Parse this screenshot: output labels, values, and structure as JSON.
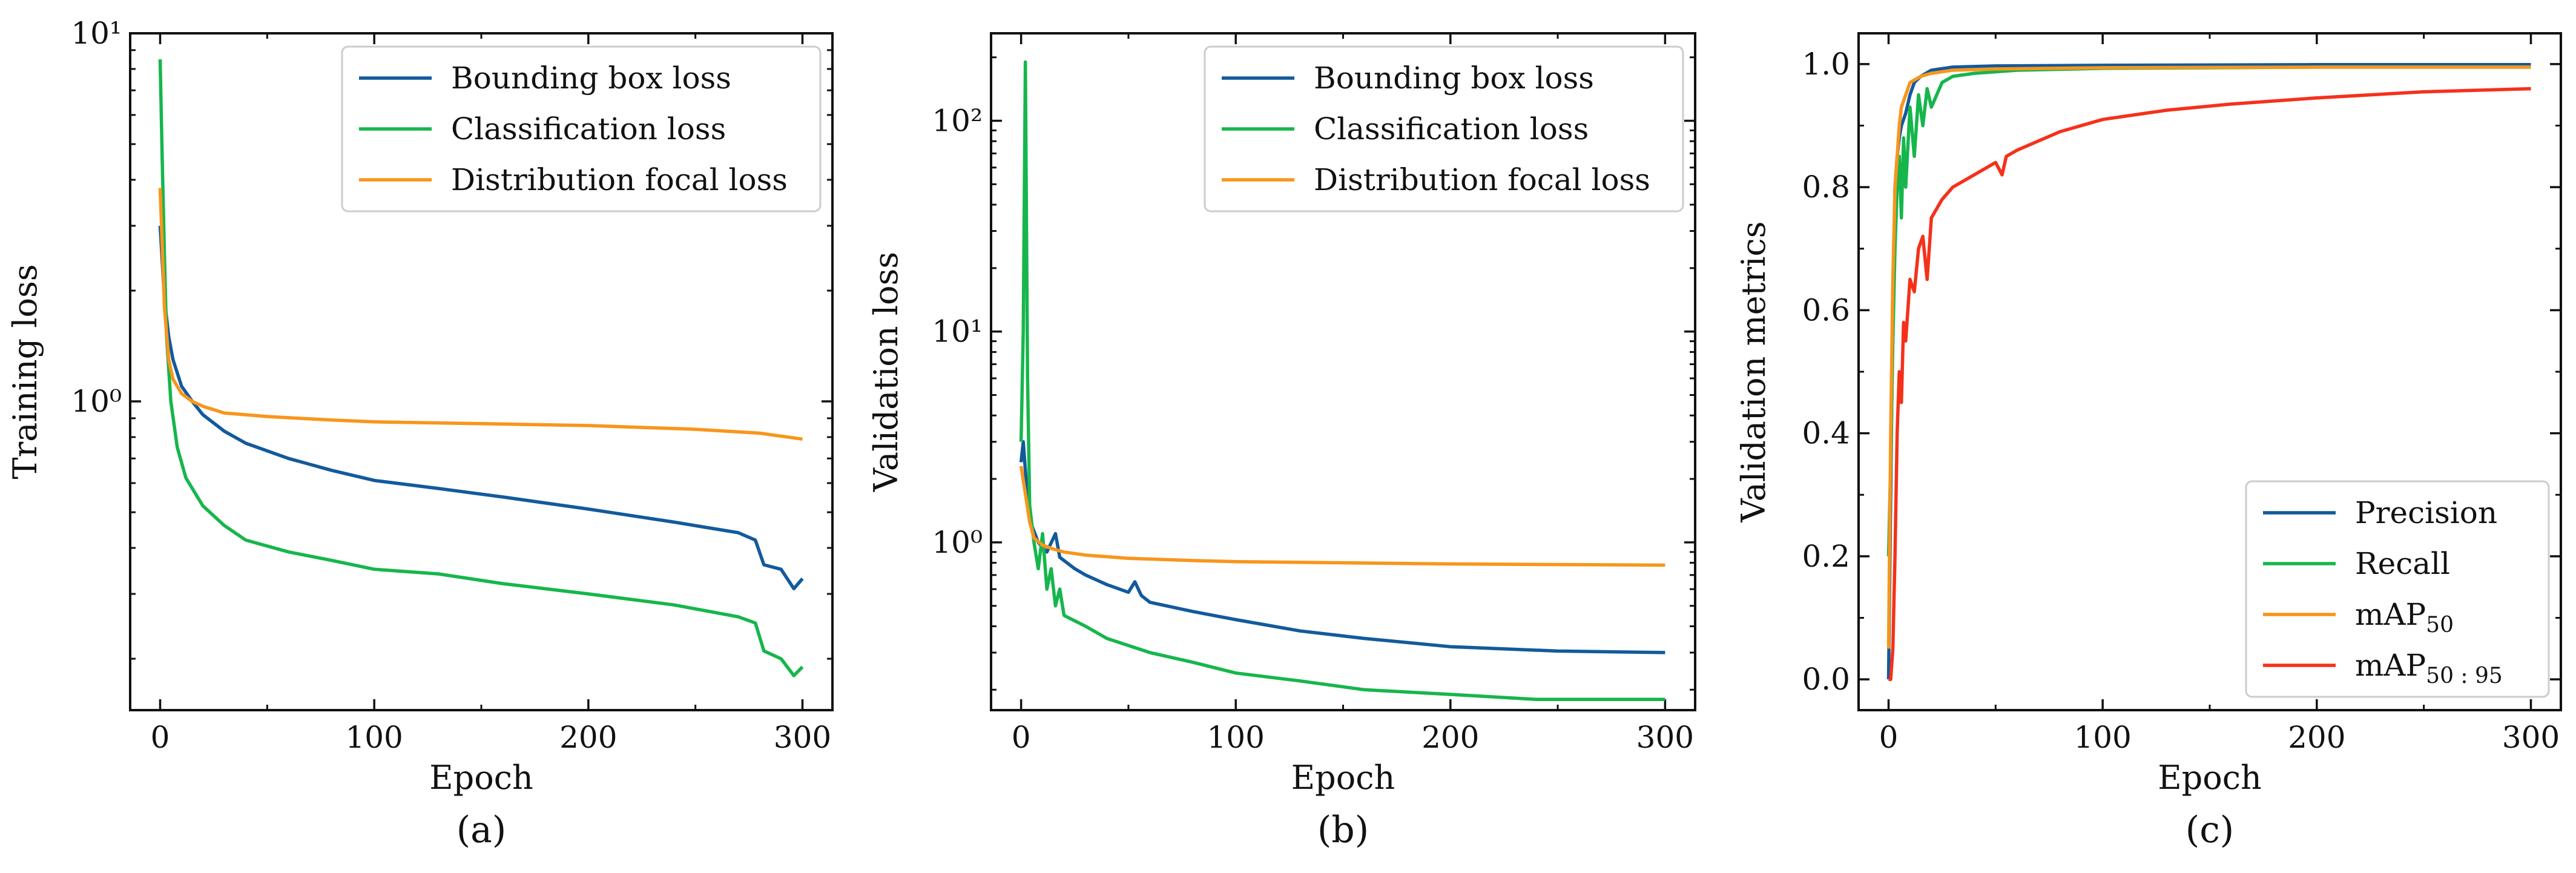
{
  "colors": {
    "blue": "#125a9c",
    "green": "#16b64c",
    "orange": "#f7961c",
    "red": "#f5311a"
  },
  "chart_data": [
    {
      "type": "line",
      "panel": "(a)",
      "xlabel": "Epoch",
      "ylabel": "Training loss",
      "yscale": "log",
      "xlim": [
        -14,
        314
      ],
      "ylim": [
        0.145,
        10.0
      ],
      "xticks": [
        0,
        100,
        200,
        300
      ],
      "xtick_labels": [
        "0",
        "100",
        "200",
        "300"
      ],
      "yticks": [
        1,
        10
      ],
      "ytick_labels": [
        "10⁰",
        "10¹"
      ],
      "legend_position": "top-right",
      "series": [
        {
          "name": "Bounding box loss",
          "color_key": "blue",
          "x": [
            0,
            2,
            4,
            6,
            10,
            15,
            20,
            30,
            40,
            60,
            80,
            100,
            130,
            160,
            200,
            240,
            270,
            278,
            282,
            290,
            296,
            300
          ],
          "y": [
            3.0,
            1.9,
            1.5,
            1.3,
            1.1,
            1.0,
            0.92,
            0.83,
            0.77,
            0.7,
            0.65,
            0.61,
            0.58,
            0.55,
            0.51,
            0.47,
            0.44,
            0.42,
            0.36,
            0.35,
            0.31,
            0.33
          ]
        },
        {
          "name": "Classification loss",
          "color_key": "green",
          "x": [
            0,
            1,
            2,
            3,
            5,
            8,
            12,
            20,
            30,
            40,
            60,
            80,
            100,
            130,
            160,
            200,
            240,
            270,
            278,
            282,
            290,
            296,
            300
          ],
          "y": [
            8.5,
            4.5,
            2.5,
            1.5,
            1.0,
            0.75,
            0.62,
            0.52,
            0.46,
            0.42,
            0.39,
            0.37,
            0.35,
            0.34,
            0.32,
            0.3,
            0.28,
            0.26,
            0.25,
            0.21,
            0.2,
            0.18,
            0.19
          ]
        },
        {
          "name": "Distribution focal loss",
          "color_key": "orange",
          "x": [
            0,
            2,
            4,
            6,
            10,
            15,
            20,
            30,
            50,
            80,
            100,
            150,
            200,
            250,
            280,
            300
          ],
          "y": [
            3.8,
            1.8,
            1.3,
            1.15,
            1.05,
            1.0,
            0.97,
            0.93,
            0.91,
            0.89,
            0.88,
            0.87,
            0.86,
            0.84,
            0.82,
            0.79
          ]
        }
      ]
    },
    {
      "type": "line",
      "panel": "(b)",
      "xlabel": "Epoch",
      "ylabel": "Validation loss",
      "yscale": "log",
      "xlim": [
        -14,
        314
      ],
      "ylim": [
        0.16,
        260
      ],
      "xticks": [
        0,
        100,
        200,
        300
      ],
      "xtick_labels": [
        "0",
        "100",
        "200",
        "300"
      ],
      "yticks": [
        1,
        10,
        100
      ],
      "ytick_labels": [
        "10⁰",
        "10¹",
        "10²"
      ],
      "legend_position": "top-right",
      "series": [
        {
          "name": "Bounding box loss",
          "color_key": "blue",
          "x": [
            0,
            1,
            2,
            3,
            5,
            8,
            12,
            16,
            18,
            20,
            25,
            30,
            40,
            50,
            53,
            56,
            60,
            80,
            100,
            130,
            160,
            200,
            250,
            300
          ],
          "y": [
            2.4,
            3.0,
            2.2,
            1.6,
            1.2,
            1.0,
            0.9,
            1.1,
            0.85,
            0.82,
            0.75,
            0.7,
            0.63,
            0.58,
            0.65,
            0.56,
            0.52,
            0.47,
            0.43,
            0.38,
            0.35,
            0.32,
            0.305,
            0.3
          ]
        },
        {
          "name": "Classification loss",
          "color_key": "green",
          "x": [
            0,
            1,
            2,
            3,
            4,
            6,
            8,
            10,
            12,
            14,
            16,
            18,
            20,
            30,
            40,
            60,
            80,
            100,
            130,
            160,
            200,
            240,
            300
          ],
          "y": [
            3.0,
            10.0,
            190.0,
            6.0,
            1.5,
            1.0,
            0.75,
            1.1,
            0.6,
            0.75,
            0.5,
            0.6,
            0.45,
            0.4,
            0.35,
            0.3,
            0.27,
            0.24,
            0.22,
            0.2,
            0.19,
            0.18,
            0.18
          ]
        },
        {
          "name": "Distribution focal loss",
          "color_key": "orange",
          "x": [
            0,
            2,
            4,
            6,
            10,
            15,
            20,
            30,
            50,
            80,
            100,
            150,
            200,
            300
          ],
          "y": [
            2.3,
            1.7,
            1.25,
            1.05,
            0.97,
            0.93,
            0.9,
            0.87,
            0.84,
            0.82,
            0.81,
            0.8,
            0.79,
            0.78
          ]
        }
      ]
    },
    {
      "type": "line",
      "panel": "(c)",
      "xlabel": "Epoch",
      "ylabel": "Validation metrics",
      "yscale": "linear",
      "xlim": [
        -14,
        314
      ],
      "ylim": [
        -0.05,
        1.05
      ],
      "xticks": [
        0,
        100,
        200,
        300
      ],
      "xtick_labels": [
        "0",
        "100",
        "200",
        "300"
      ],
      "yticks": [
        0,
        0.2,
        0.4,
        0.6,
        0.8,
        1.0
      ],
      "ytick_labels": [
        "0.0",
        "0.2",
        "0.4",
        "0.6",
        "0.8",
        "1.0"
      ],
      "legend_position": "bottom-right",
      "series": [
        {
          "name": "Precision",
          "sub": "",
          "color_key": "blue",
          "x": [
            0,
            1,
            2,
            3,
            4,
            5,
            6,
            8,
            10,
            12,
            15,
            20,
            30,
            50,
            100,
            200,
            300
          ],
          "y": [
            0.0,
            0.3,
            0.6,
            0.8,
            0.85,
            0.88,
            0.9,
            0.92,
            0.95,
            0.97,
            0.98,
            0.99,
            0.995,
            0.997,
            0.998,
            0.999,
            0.999
          ]
        },
        {
          "name": "Recall",
          "sub": "",
          "color_key": "green",
          "x": [
            0,
            1,
            2,
            3,
            4,
            5,
            6,
            7,
            8,
            10,
            12,
            14,
            16,
            18,
            20,
            25,
            30,
            40,
            60,
            100,
            200,
            300
          ],
          "y": [
            0.2,
            0.35,
            0.55,
            0.7,
            0.8,
            0.85,
            0.75,
            0.88,
            0.8,
            0.93,
            0.85,
            0.95,
            0.9,
            0.96,
            0.93,
            0.97,
            0.98,
            0.985,
            0.99,
            0.993,
            0.995,
            0.995
          ]
        },
        {
          "name": "mAP",
          "sub": "50",
          "color_key": "orange",
          "x": [
            0,
            1,
            2,
            3,
            4,
            5,
            6,
            8,
            10,
            15,
            20,
            30,
            50,
            100,
            200,
            300
          ],
          "y": [
            0.05,
            0.4,
            0.65,
            0.8,
            0.85,
            0.9,
            0.93,
            0.95,
            0.97,
            0.98,
            0.985,
            0.99,
            0.992,
            0.994,
            0.995,
            0.995
          ]
        },
        {
          "name": "mAP",
          "sub": "50 : 95",
          "color_key": "red",
          "x": [
            0,
            1,
            2,
            3,
            4,
            5,
            6,
            7,
            8,
            10,
            12,
            14,
            16,
            18,
            20,
            25,
            30,
            40,
            50,
            53,
            55,
            60,
            80,
            100,
            130,
            160,
            200,
            250,
            300
          ],
          "y": [
            0.0,
            0.0,
            0.05,
            0.2,
            0.4,
            0.5,
            0.45,
            0.58,
            0.55,
            0.65,
            0.63,
            0.7,
            0.72,
            0.65,
            0.75,
            0.78,
            0.8,
            0.82,
            0.84,
            0.82,
            0.85,
            0.86,
            0.89,
            0.91,
            0.925,
            0.935,
            0.945,
            0.955,
            0.96
          ]
        }
      ]
    }
  ]
}
